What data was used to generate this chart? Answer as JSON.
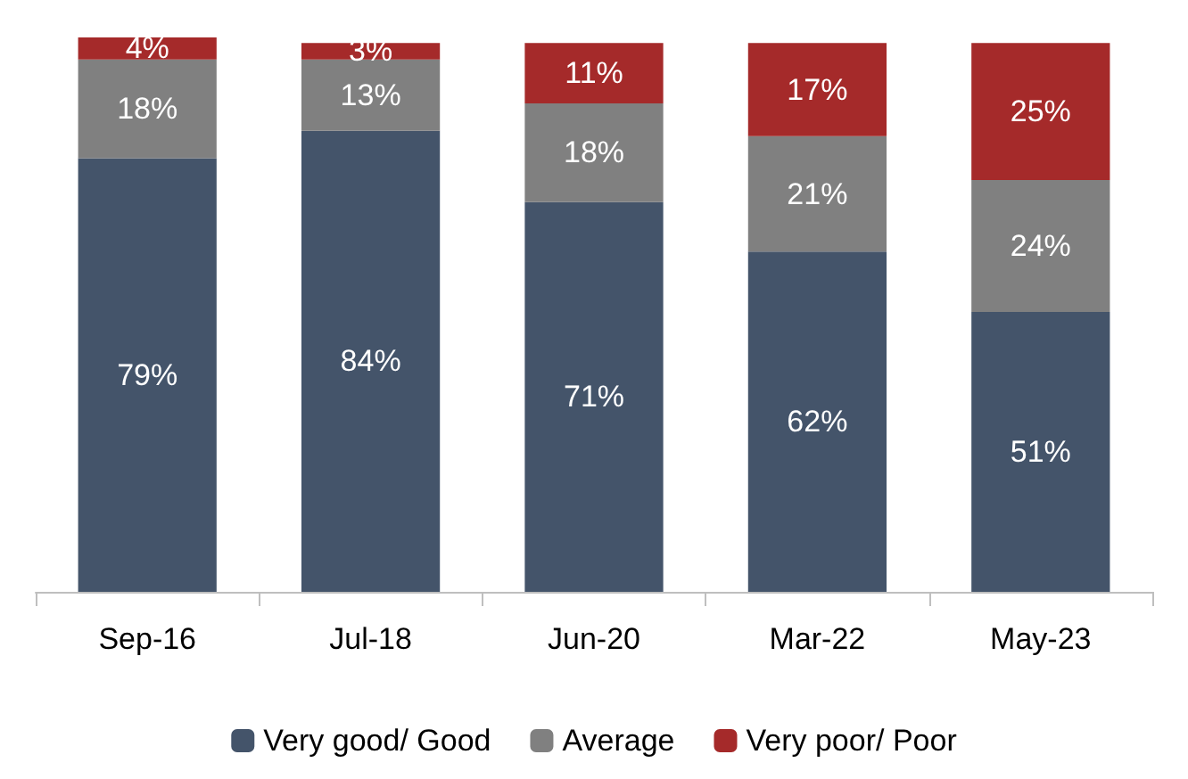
{
  "chart_data": {
    "type": "bar",
    "stacked": true,
    "categories": [
      "Sep-16",
      "Jul-18",
      "Jun-20",
      "Mar-22",
      "May-23"
    ],
    "series": [
      {
        "name": "Very good/ Good",
        "color": "#44546a",
        "values": [
          79,
          84,
          71,
          62,
          51
        ],
        "value_labels": [
          "79%",
          "84%",
          "71%",
          "62%",
          "51%"
        ]
      },
      {
        "name": "Average",
        "color": "#808080",
        "values": [
          18,
          13,
          18,
          21,
          24
        ],
        "value_labels": [
          "18%",
          "13%",
          "18%",
          "21%",
          "24%"
        ]
      },
      {
        "name": "Very poor/ Poor",
        "color": "#a52a2a",
        "values": [
          4,
          3,
          11,
          17,
          25
        ],
        "value_labels": [
          "4%",
          "3%",
          "11%",
          "17%",
          "25%"
        ]
      }
    ],
    "legend": "bottom"
  }
}
